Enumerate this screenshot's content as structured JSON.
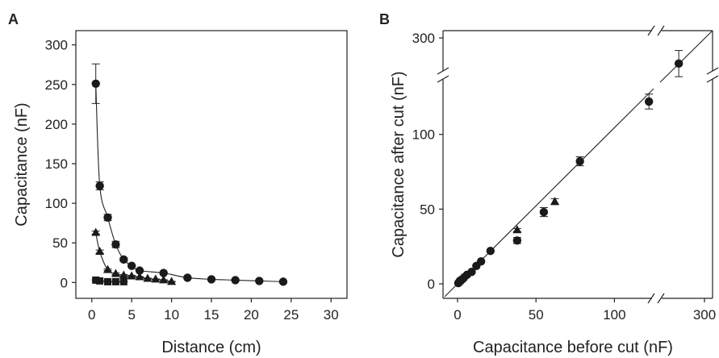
{
  "chart_data": [
    {
      "panel": "A",
      "type": "scatter",
      "xlabel": "Distance (cm)",
      "ylabel": "Capacitance (nF)",
      "xlim": [
        -2,
        32
      ],
      "ylim": [
        -20,
        318
      ],
      "xticks": [
        "0",
        "5",
        "10",
        "15",
        "20",
        "25",
        "30"
      ],
      "yticks": [
        "0",
        "50",
        "100",
        "150",
        "200",
        "250",
        "300"
      ],
      "grid": false,
      "legend": "none",
      "series": [
        {
          "marker": "circle",
          "line": true,
          "points": [
            {
              "x": 0.5,
              "y": 251,
              "err": 25
            },
            {
              "x": 1,
              "y": 122,
              "err": 5
            },
            {
              "x": 2,
              "y": 82,
              "err": 4
            },
            {
              "x": 3,
              "y": 48,
              "err": 4
            },
            {
              "x": 4,
              "y": 29,
              "err": 2
            },
            {
              "x": 5,
              "y": 21,
              "err": 1
            },
            {
              "x": 6,
              "y": 15,
              "err": 1
            },
            {
              "x": 9,
              "y": 12,
              "err": 1
            },
            {
              "x": 12,
              "y": 6,
              "err": 1
            },
            {
              "x": 15,
              "y": 4,
              "err": 0.5
            },
            {
              "x": 18,
              "y": 3,
              "err": 0.5
            },
            {
              "x": 21,
              "y": 2,
              "err": 0.5
            },
            {
              "x": 24,
              "y": 1,
              "err": 0.5
            }
          ]
        },
        {
          "marker": "triangle",
          "line": true,
          "points": [
            {
              "x": 0.5,
              "y": 63,
              "err": 2
            },
            {
              "x": 1,
              "y": 39,
              "err": 2
            },
            {
              "x": 2,
              "y": 16,
              "err": 1
            },
            {
              "x": 3,
              "y": 11,
              "err": 1
            },
            {
              "x": 4,
              "y": 9,
              "err": 1
            },
            {
              "x": 5,
              "y": 8,
              "err": 1
            },
            {
              "x": 6,
              "y": 7,
              "err": 0.5
            },
            {
              "x": 7,
              "y": 5,
              "err": 0.5
            },
            {
              "x": 8,
              "y": 4,
              "err": 0.5
            },
            {
              "x": 9,
              "y": 3,
              "err": 0.5
            },
            {
              "x": 10,
              "y": 1,
              "err": 0.5
            }
          ]
        },
        {
          "marker": "square",
          "line": true,
          "points": [
            {
              "x": 0.5,
              "y": 3,
              "err": 0.5
            },
            {
              "x": 1,
              "y": 2,
              "err": 0.5
            },
            {
              "x": 2,
              "y": 1,
              "err": 0.3
            },
            {
              "x": 3,
              "y": 1,
              "err": 0.3
            },
            {
              "x": 4,
              "y": 1,
              "err": 0.3
            }
          ]
        }
      ]
    },
    {
      "panel": "B",
      "type": "scatter",
      "xlabel": "Capacitance before cut (nF)",
      "ylabel": "Capacitance after cut (nF)",
      "axis_break": true,
      "xticks": [
        "0",
        "50",
        "100",
        "300"
      ],
      "yticks": [
        "0",
        "50",
        "100",
        "300"
      ],
      "grid": false,
      "legend": "none",
      "identity_line": true,
      "series": [
        {
          "marker": "circle",
          "points": [
            {
              "x": 0.5,
              "y": 0.5,
              "err": 0
            },
            {
              "x": 1,
              "y": 1,
              "err": 0
            },
            {
              "x": 1.5,
              "y": 2,
              "err": 0
            },
            {
              "x": 2,
              "y": 2,
              "err": 0
            },
            {
              "x": 3,
              "y": 3,
              "err": 0
            },
            {
              "x": 4,
              "y": 4,
              "err": 0
            },
            {
              "x": 6,
              "y": 6,
              "err": 0
            },
            {
              "x": 9,
              "y": 8,
              "err": 0
            },
            {
              "x": 12,
              "y": 12,
              "err": 0
            },
            {
              "x": 15,
              "y": 15,
              "err": 0
            },
            {
              "x": 21,
              "y": 22,
              "err": 0
            },
            {
              "x": 38,
              "y": 29,
              "err": 2
            },
            {
              "x": 55,
              "y": 48,
              "err": 3
            },
            {
              "x": 78,
              "y": 82,
              "err": 3
            },
            {
              "x": 122,
              "y": 122,
              "err": 5
            },
            {
              "x": 251,
              "y": 251,
              "err": 25
            }
          ]
        },
        {
          "marker": "triangle",
          "points": [
            {
              "x": 1,
              "y": 2,
              "err": 0
            },
            {
              "x": 3,
              "y": 4,
              "err": 0
            },
            {
              "x": 38,
              "y": 36,
              "err": 1
            },
            {
              "x": 62,
              "y": 55,
              "err": 2
            }
          ]
        }
      ]
    }
  ]
}
